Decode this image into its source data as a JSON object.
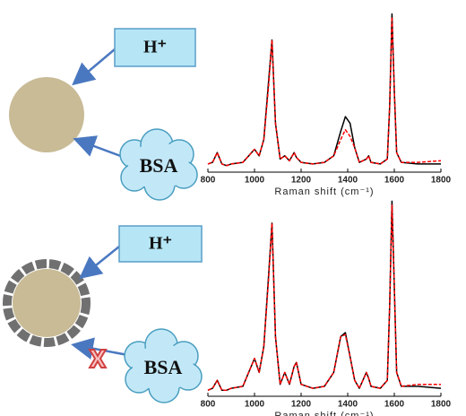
{
  "chart_data": [
    {
      "type": "line",
      "xlabel": "Raman shift (cm⁻¹)",
      "x": [
        800,
        820,
        840,
        860,
        880,
        900,
        950,
        1000,
        1020,
        1040,
        1060,
        1075,
        1090,
        1110,
        1130,
        1150,
        1170,
        1180,
        1200,
        1250,
        1300,
        1340,
        1370,
        1390,
        1410,
        1430,
        1450,
        1480,
        1490,
        1500,
        1540,
        1570,
        1580,
        1590,
        1600,
        1610,
        1630,
        1700,
        1800
      ],
      "series": [
        {
          "color": "#000000",
          "style": "solid",
          "values": [
            5,
            6,
            12,
            5,
            4,
            5,
            6,
            14,
            10,
            20,
            55,
            81,
            30,
            8,
            10,
            7,
            12,
            9,
            6,
            5,
            6,
            10,
            25,
            34,
            30,
            15,
            6,
            8,
            10,
            6,
            5,
            8,
            40,
            97,
            50,
            12,
            6,
            5,
            5
          ]
        },
        {
          "color": "#ff0000",
          "style": "dashed",
          "values": [
            5,
            6,
            12,
            5,
            4,
            5,
            6,
            14,
            10,
            20,
            52,
            81,
            30,
            8,
            10,
            7,
            12,
            9,
            6,
            5,
            6,
            10,
            20,
            26,
            22,
            15,
            6,
            8,
            10,
            6,
            5,
            8,
            40,
            95,
            50,
            12,
            6,
            6,
            7
          ]
        }
      ],
      "xlim": [
        800,
        1800
      ],
      "xticks": [
        800,
        1000,
        1200,
        1400,
        1600,
        1800
      ],
      "ylim": [
        0,
        100
      ]
    },
    {
      "type": "line",
      "xlabel": "Raman shift (cm⁻¹)",
      "x": [
        800,
        820,
        840,
        860,
        880,
        900,
        950,
        1000,
        1020,
        1040,
        1060,
        1075,
        1090,
        1110,
        1130,
        1150,
        1170,
        1180,
        1200,
        1250,
        1300,
        1340,
        1370,
        1390,
        1410,
        1430,
        1450,
        1480,
        1490,
        1500,
        1540,
        1570,
        1580,
        1590,
        1600,
        1610,
        1630,
        1700,
        1800
      ],
      "series": [
        {
          "color": "#000000",
          "style": "solid",
          "values": [
            3,
            4,
            8,
            3,
            3,
            4,
            5,
            19,
            12,
            25,
            60,
            87,
            30,
            6,
            12,
            6,
            15,
            17,
            6,
            4,
            5,
            12,
            30,
            32,
            20,
            8,
            4,
            12,
            9,
            5,
            4,
            8,
            45,
            98,
            55,
            12,
            5,
            5,
            4
          ]
        },
        {
          "color": "#ff0000",
          "style": "dashed",
          "values": [
            3,
            4,
            8,
            3,
            3,
            4,
            5,
            19,
            12,
            25,
            58,
            87,
            30,
            6,
            12,
            6,
            15,
            17,
            6,
            4,
            5,
            12,
            30,
            31,
            20,
            8,
            4,
            12,
            9,
            5,
            4,
            8,
            45,
            96,
            55,
            12,
            5,
            6,
            6
          ]
        }
      ],
      "xlim": [
        800,
        1800
      ],
      "xticks": [
        800,
        1000,
        1200,
        1400,
        1600,
        1800
      ],
      "ylim": [
        0,
        100
      ]
    }
  ],
  "diagram": [
    {
      "proton": "H⁺",
      "protein": "BSA"
    },
    {
      "proton": "H⁺",
      "protein": "BSA"
    }
  ]
}
